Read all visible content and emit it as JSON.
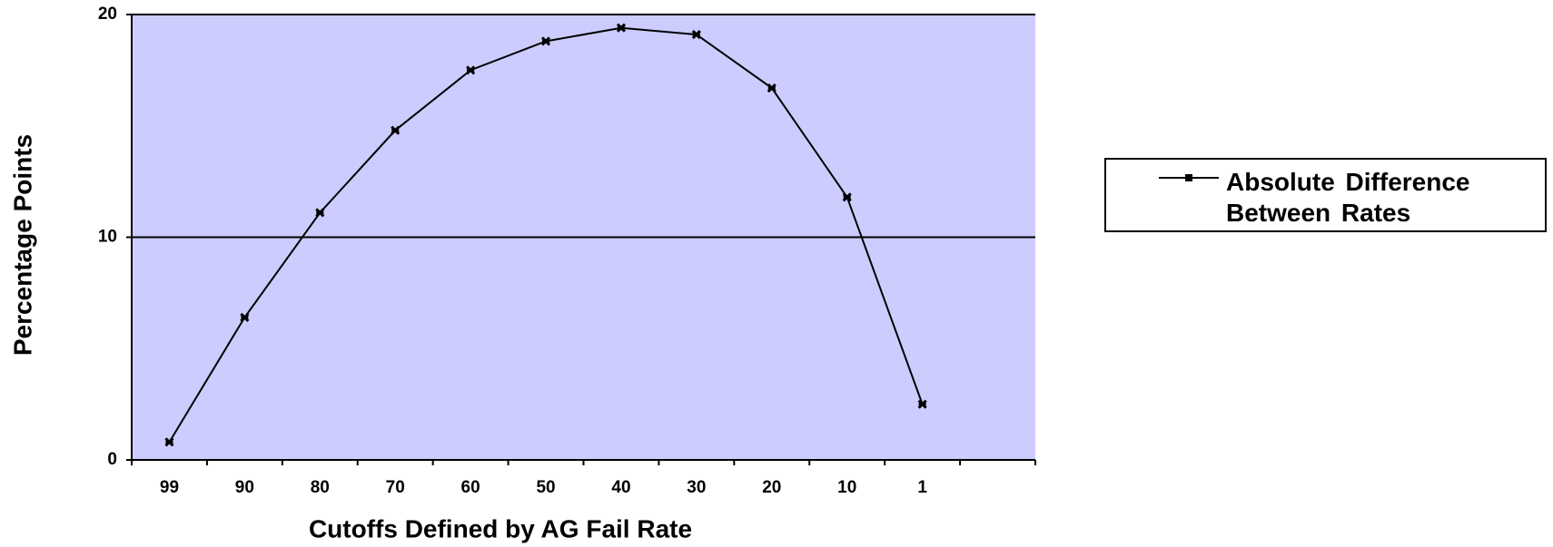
{
  "chart_data": {
    "type": "line",
    "x_label": "Cutoffs Defined by AG Fail Rate",
    "y_label": "Percentage Points",
    "categories": [
      "99",
      "90",
      "80",
      "70",
      "60",
      "50",
      "40",
      "30",
      "20",
      "10",
      "1",
      null
    ],
    "series": [
      {
        "name": "Absolute Difference Between Rates",
        "color": "#000000",
        "values": [
          0.8,
          6.4,
          11.1,
          14.8,
          17.5,
          18.8,
          19.4,
          19.1,
          16.7,
          11.8,
          2.5,
          null
        ]
      }
    ],
    "ylim": [
      0,
      20
    ],
    "yticks": [
      0,
      10,
      20
    ],
    "grid": true,
    "background": "#ccccff",
    "legend": "right"
  }
}
